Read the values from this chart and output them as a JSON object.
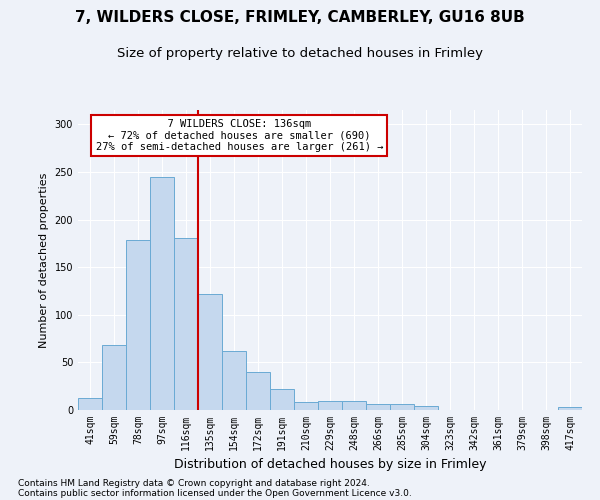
{
  "title1": "7, WILDERS CLOSE, FRIMLEY, CAMBERLEY, GU16 8UB",
  "title2": "Size of property relative to detached houses in Frimley",
  "xlabel": "Distribution of detached houses by size in Frimley",
  "ylabel": "Number of detached properties",
  "categories": [
    "41sqm",
    "59sqm",
    "78sqm",
    "97sqm",
    "116sqm",
    "135sqm",
    "154sqm",
    "172sqm",
    "191sqm",
    "210sqm",
    "229sqm",
    "248sqm",
    "266sqm",
    "285sqm",
    "304sqm",
    "323sqm",
    "342sqm",
    "361sqm",
    "379sqm",
    "398sqm",
    "417sqm"
  ],
  "values": [
    13,
    68,
    178,
    245,
    181,
    122,
    62,
    40,
    22,
    8,
    9,
    9,
    6,
    6,
    4,
    0,
    0,
    0,
    0,
    0,
    3
  ],
  "bar_color": "#c5d8ee",
  "bar_edge_color": "#6aaad4",
  "vline_x_index": 5,
  "vline_color": "#cc0000",
  "annotation_text": "  7 WILDERS CLOSE: 136sqm  \n← 72% of detached houses are smaller (690)\n27% of semi-detached houses are larger (261) →",
  "annotation_box_color": "#ffffff",
  "annotation_box_edge_color": "#cc0000",
  "ylim": [
    0,
    315
  ],
  "yticks": [
    0,
    50,
    100,
    150,
    200,
    250,
    300
  ],
  "footer1": "Contains HM Land Registry data © Crown copyright and database right 2024.",
  "footer2": "Contains public sector information licensed under the Open Government Licence v3.0.",
  "background_color": "#eef2f9",
  "plot_bg_color": "#eef2f9",
  "grid_color": "#ffffff",
  "title1_fontsize": 11,
  "title2_fontsize": 9.5,
  "xlabel_fontsize": 9,
  "ylabel_fontsize": 8,
  "tick_fontsize": 7,
  "footer_fontsize": 6.5,
  "ann_fontsize": 7.5
}
